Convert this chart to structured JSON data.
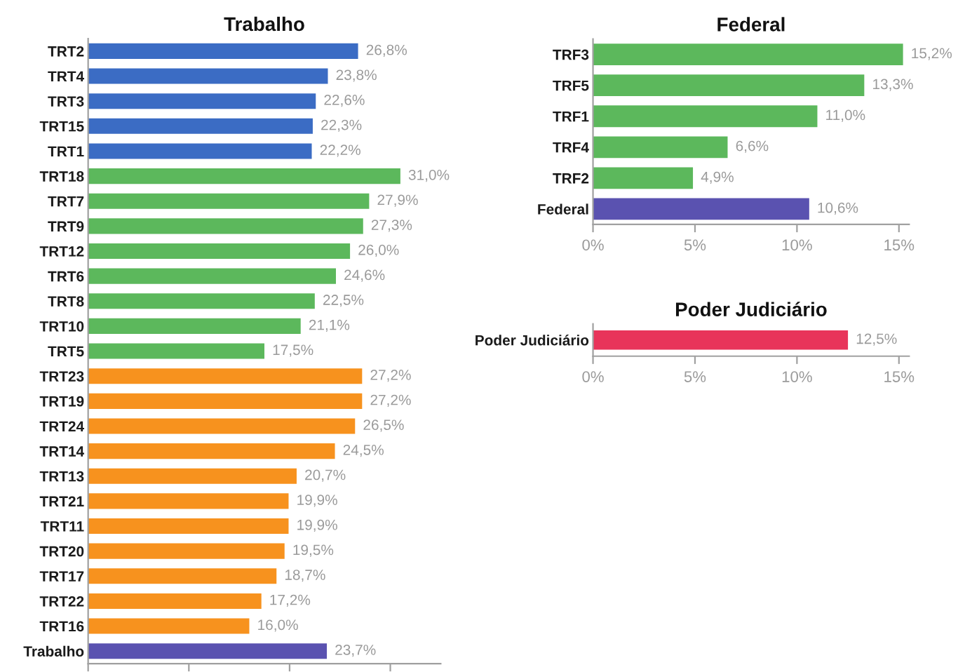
{
  "chart_data": [
    {
      "type": "bar",
      "orientation": "horizontal",
      "title": "Trabalho",
      "categories": [
        "TRT2",
        "TRT4",
        "TRT3",
        "TRT15",
        "TRT1",
        "TRT18",
        "TRT7",
        "TRT9",
        "TRT12",
        "TRT6",
        "TRT8",
        "TRT10",
        "TRT5",
        "TRT23",
        "TRT19",
        "TRT24",
        "TRT14",
        "TRT13",
        "TRT21",
        "TRT11",
        "TRT20",
        "TRT17",
        "TRT22",
        "TRT16",
        "Trabalho"
      ],
      "values": [
        26.8,
        23.8,
        22.6,
        22.3,
        22.2,
        31.0,
        27.9,
        27.3,
        26.0,
        24.6,
        22.5,
        21.1,
        17.5,
        27.2,
        27.2,
        26.5,
        24.5,
        20.7,
        19.9,
        19.9,
        19.5,
        18.7,
        17.2,
        16.0,
        23.7
      ],
      "value_labels": [
        "26,8%",
        "23,8%",
        "22,6%",
        "22,3%",
        "22,2%",
        "31,0%",
        "27,9%",
        "27,3%",
        "26,0%",
        "24,6%",
        "22,5%",
        "21,1%",
        "17,5%",
        "27,2%",
        "27,2%",
        "26,5%",
        "24,5%",
        "20,7%",
        "19,9%",
        "19,9%",
        "19,5%",
        "18,7%",
        "17,2%",
        "16,0%",
        "23,7%"
      ],
      "colors": [
        "#3b6cc4",
        "#3b6cc4",
        "#3b6cc4",
        "#3b6cc4",
        "#3b6cc4",
        "#5cb85c",
        "#5cb85c",
        "#5cb85c",
        "#5cb85c",
        "#5cb85c",
        "#5cb85c",
        "#5cb85c",
        "#5cb85c",
        "#f7921e",
        "#f7921e",
        "#f7921e",
        "#f7921e",
        "#f7921e",
        "#f7921e",
        "#f7921e",
        "#f7921e",
        "#f7921e",
        "#f7921e",
        "#f7921e",
        "#5a52b0"
      ],
      "xlim": [
        0,
        35
      ],
      "xticks": [
        {
          "value": 0,
          "label": null
        },
        {
          "value": 10,
          "label": null
        },
        {
          "value": 20,
          "label": null
        },
        {
          "value": 30,
          "label": null
        }
      ],
      "tick_labels": "y",
      "grid": false,
      "legend": false
    },
    {
      "type": "bar",
      "orientation": "horizontal",
      "title": "Federal",
      "categories": [
        "TRF3",
        "TRF5",
        "TRF1",
        "TRF4",
        "TRF2",
        "Federal"
      ],
      "values": [
        15.2,
        13.3,
        11.0,
        6.6,
        4.9,
        10.6
      ],
      "value_labels": [
        "15,2%",
        "13,3%",
        "11,0%",
        "6,6%",
        "4,9%",
        "10,6%"
      ],
      "colors": [
        "#5cb85c",
        "#5cb85c",
        "#5cb85c",
        "#5cb85c",
        "#5cb85c",
        "#5a52b0"
      ],
      "xlim": [
        0,
        15.5
      ],
      "xticks": [
        {
          "value": 0,
          "label": "0%"
        },
        {
          "value": 5,
          "label": "5%"
        },
        {
          "value": 10,
          "label": "10%"
        },
        {
          "value": 15,
          "label": "15%"
        }
      ],
      "grid": false,
      "legend": false
    },
    {
      "type": "bar",
      "orientation": "horizontal",
      "title": "Poder Judiciário",
      "categories": [
        "Poder Judiciário"
      ],
      "values": [
        12.5
      ],
      "value_labels": [
        "12,5%"
      ],
      "colors": [
        "#e8345a"
      ],
      "xlim": [
        0,
        15.5
      ],
      "xticks": [
        {
          "value": 0,
          "label": "0%"
        },
        {
          "value": 5,
          "label": "5%"
        },
        {
          "value": 10,
          "label": "10%"
        },
        {
          "value": 15,
          "label": "15%"
        }
      ],
      "grid": false,
      "legend": false
    }
  ]
}
